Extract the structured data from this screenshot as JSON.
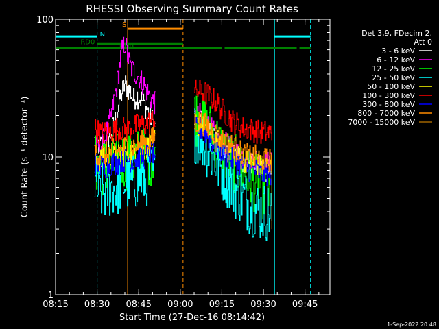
{
  "chart_data": {
    "type": "line",
    "title": "RHESSI Observing Summary Count Rates",
    "xlabel": "Start Time (27-Dec-16 08:14:42)",
    "ylabel": "Count Rate (s⁻¹ detector⁻¹)",
    "yscale": "log",
    "ylim": [
      1,
      100
    ],
    "xlim": [
      "08:15",
      "09:54"
    ],
    "x_ticks": [
      "08:15",
      "08:30",
      "08:45",
      "09:00",
      "09:15",
      "09:30",
      "09:45"
    ],
    "y_ticks": [
      "1",
      "10",
      "100"
    ],
    "legend": {
      "placement": "right",
      "header": [
        "Det 3,9, FDecim 2,",
        "Att 0"
      ]
    },
    "series": [
      {
        "name": "3 - 6 keV",
        "color": "#ffffff",
        "segments": [
          [
            [
              "08:29",
              13
            ],
            [
              "08:31",
              12
            ],
            [
              "08:33",
              13
            ],
            [
              "08:35",
              15
            ],
            [
              "08:37",
              20
            ],
            [
              "08:38",
              26
            ],
            [
              "08:39",
              30
            ],
            [
              "08:40",
              34
            ],
            [
              "08:41",
              31
            ],
            [
              "08:42",
              30
            ],
            [
              "08:43",
              26
            ],
            [
              "08:44",
              28
            ],
            [
              "08:46",
              26
            ],
            [
              "08:48",
              22
            ],
            [
              "08:50",
              18
            ],
            [
              "08:51",
              16
            ]
          ],
          [
            [
              "09:05",
              18
            ],
            [
              "09:07",
              19
            ],
            [
              "09:09",
              17
            ],
            [
              "09:11",
              15
            ],
            [
              "09:13",
              13
            ],
            [
              "09:15",
              12
            ],
            [
              "09:17",
              11
            ],
            [
              "09:19",
              10
            ],
            [
              "09:21",
              10
            ],
            [
              "09:23",
              9
            ],
            [
              "09:25",
              9
            ],
            [
              "09:27",
              9
            ],
            [
              "09:29",
              8.5
            ],
            [
              "09:31",
              8
            ],
            [
              "09:33",
              8
            ]
          ]
        ]
      },
      {
        "name": "6 - 12 keV",
        "color": "#ff00ff",
        "segments": [
          [
            [
              "08:29",
              13
            ],
            [
              "08:31",
              12
            ],
            [
              "08:33",
              14
            ],
            [
              "08:35",
              20
            ],
            [
              "08:37",
              33
            ],
            [
              "08:38",
              47
            ],
            [
              "08:39",
              60
            ],
            [
              "08:40",
              68
            ],
            [
              "08:41",
              52
            ],
            [
              "08:42",
              45
            ],
            [
              "08:43",
              42
            ],
            [
              "08:45",
              38
            ],
            [
              "08:47",
              33
            ],
            [
              "08:49",
              27
            ],
            [
              "08:51",
              24
            ]
          ],
          [
            [
              "09:05",
              19
            ],
            [
              "09:07",
              20
            ],
            [
              "09:09",
              18
            ],
            [
              "09:11",
              16
            ],
            [
              "09:13",
              14
            ],
            [
              "09:15",
              13
            ],
            [
              "09:17",
              12
            ],
            [
              "09:19",
              11
            ],
            [
              "09:21",
              10.5
            ],
            [
              "09:23",
              10
            ],
            [
              "09:25",
              9.5
            ],
            [
              "09:27",
              9.5
            ],
            [
              "09:29",
              9
            ],
            [
              "09:31",
              9
            ],
            [
              "09:33",
              9
            ]
          ]
        ]
      },
      {
        "name": "12 - 25 keV",
        "color": "#00ff00",
        "segments": [
          [
            [
              "08:29",
              9
            ],
            [
              "08:31",
              8.5
            ],
            [
              "08:33",
              8.5
            ],
            [
              "08:35",
              9
            ],
            [
              "08:37",
              9
            ],
            [
              "08:39",
              9.5
            ],
            [
              "08:41",
              9.5
            ],
            [
              "08:43",
              9.5
            ],
            [
              "08:45",
              10
            ],
            [
              "08:47",
              10
            ],
            [
              "08:49",
              10
            ],
            [
              "08:51",
              11
            ]
          ],
          [
            [
              "09:05",
              20
            ],
            [
              "09:07",
              19
            ],
            [
              "09:09",
              17
            ],
            [
              "09:11",
              15
            ],
            [
              "09:13",
              13
            ],
            [
              "09:15",
              11
            ],
            [
              "09:17",
              10
            ],
            [
              "09:19",
              9
            ],
            [
              "09:21",
              8.5
            ],
            [
              "09:23",
              8
            ],
            [
              "09:25",
              7
            ],
            [
              "09:27",
              6.5
            ],
            [
              "09:29",
              6
            ],
            [
              "09:31",
              5.5
            ],
            [
              "09:33",
              5.5
            ]
          ]
        ]
      },
      {
        "name": "25 - 50 keV",
        "color": "#00ffff",
        "segments": [
          [
            [
              "08:29",
              6
            ],
            [
              "08:31",
              5.5
            ],
            [
              "08:33",
              5.5
            ],
            [
              "08:35",
              6
            ],
            [
              "08:37",
              6
            ],
            [
              "08:39",
              6.5
            ],
            [
              "08:41",
              6.5
            ],
            [
              "08:43",
              6.5
            ],
            [
              "08:45",
              7
            ],
            [
              "08:47",
              7
            ],
            [
              "08:49",
              7.5
            ],
            [
              "08:51",
              8
            ]
          ],
          [
            [
              "09:05",
              15
            ],
            [
              "09:07",
              14
            ],
            [
              "09:09",
              12
            ],
            [
              "09:11",
              10.5
            ],
            [
              "09:13",
              9
            ],
            [
              "09:15",
              8
            ],
            [
              "09:17",
              7
            ],
            [
              "09:19",
              6
            ],
            [
              "09:21",
              5.5
            ],
            [
              "09:23",
              5
            ],
            [
              "09:25",
              4.5
            ],
            [
              "09:27",
              4.2
            ],
            [
              "09:29",
              4
            ],
            [
              "09:31",
              4
            ],
            [
              "09:33",
              3.8
            ]
          ]
        ]
      },
      {
        "name": "50 - 100 keV",
        "color": "#ffff00",
        "segments": [
          [
            [
              "08:29",
              10
            ],
            [
              "08:31",
              9.5
            ],
            [
              "08:33",
              9.5
            ],
            [
              "08:35",
              10
            ],
            [
              "08:37",
              10
            ],
            [
              "08:39",
              10.5
            ],
            [
              "08:41",
              10.5
            ],
            [
              "08:43",
              11
            ],
            [
              "08:45",
              11
            ],
            [
              "08:47",
              11.5
            ],
            [
              "08:49",
              12
            ],
            [
              "08:51",
              13
            ]
          ],
          [
            [
              "09:05",
              17
            ],
            [
              "09:07",
              17
            ],
            [
              "09:09",
              16
            ],
            [
              "09:11",
              14
            ],
            [
              "09:13",
              13
            ],
            [
              "09:15",
              12
            ],
            [
              "09:17",
              11
            ],
            [
              "09:19",
              10.5
            ],
            [
              "09:21",
              10
            ],
            [
              "09:23",
              9.5
            ],
            [
              "09:25",
              9
            ],
            [
              "09:27",
              9
            ],
            [
              "09:29",
              8.5
            ],
            [
              "09:31",
              8.5
            ],
            [
              "09:33",
              8.5
            ]
          ]
        ]
      },
      {
        "name": "100 - 300 keV",
        "color": "#ff0000",
        "segments": [
          [
            [
              "08:29",
              16
            ],
            [
              "08:31",
              15
            ],
            [
              "08:33",
              15
            ],
            [
              "08:35",
              15.5
            ],
            [
              "08:37",
              16
            ],
            [
              "08:39",
              16
            ],
            [
              "08:41",
              16
            ],
            [
              "08:43",
              16.5
            ],
            [
              "08:45",
              17
            ],
            [
              "08:47",
              17
            ],
            [
              "08:49",
              18
            ],
            [
              "08:51",
              19
            ]
          ],
          [
            [
              "09:05",
              30
            ],
            [
              "09:07",
              30
            ],
            [
              "09:09",
              29
            ],
            [
              "09:11",
              27
            ],
            [
              "09:13",
              25
            ],
            [
              "09:15",
              22
            ],
            [
              "09:17",
              20
            ],
            [
              "09:19",
              18
            ],
            [
              "09:21",
              17
            ],
            [
              "09:23",
              16
            ],
            [
              "09:25",
              16
            ],
            [
              "09:27",
              15.5
            ],
            [
              "09:29",
              15
            ],
            [
              "09:31",
              15
            ],
            [
              "09:33",
              15
            ]
          ]
        ]
      },
      {
        "name": "300 - 800 keV",
        "color": "#0000ff",
        "segments": [
          [
            [
              "08:29",
              9
            ],
            [
              "08:31",
              8.5
            ],
            [
              "08:33",
              8.5
            ],
            [
              "08:35",
              9
            ],
            [
              "08:37",
              9
            ],
            [
              "08:39",
              9.5
            ],
            [
              "08:41",
              9.5
            ],
            [
              "08:43",
              9.5
            ],
            [
              "08:45",
              10
            ],
            [
              "08:47",
              10
            ],
            [
              "08:49",
              10.5
            ],
            [
              "08:51",
              11
            ]
          ],
          [
            [
              "09:05",
              16
            ],
            [
              "09:07",
              16
            ],
            [
              "09:09",
              15
            ],
            [
              "09:11",
              13
            ],
            [
              "09:13",
              12
            ],
            [
              "09:15",
              11
            ],
            [
              "09:17",
              10
            ],
            [
              "09:19",
              9.5
            ],
            [
              "09:21",
              9
            ],
            [
              "09:23",
              8.5
            ],
            [
              "09:25",
              8
            ],
            [
              "09:27",
              8
            ],
            [
              "09:29",
              7.5
            ],
            [
              "09:31",
              7.5
            ],
            [
              "09:33",
              7.5
            ]
          ]
        ]
      },
      {
        "name": "800 - 7000 keV",
        "color": "#ff8c00",
        "segments": [
          [
            [
              "08:29",
              11
            ],
            [
              "08:31",
              10.5
            ],
            [
              "08:33",
              10.5
            ],
            [
              "08:35",
              11
            ],
            [
              "08:37",
              11
            ],
            [
              "08:39",
              11.5
            ],
            [
              "08:41",
              12
            ],
            [
              "08:43",
              12
            ],
            [
              "08:45",
              12.5
            ],
            [
              "08:47",
              13
            ],
            [
              "08:49",
              13
            ],
            [
              "08:51",
              14
            ]
          ],
          [
            [
              "09:05",
              18
            ],
            [
              "09:07",
              18
            ],
            [
              "09:09",
              17
            ],
            [
              "09:11",
              16
            ],
            [
              "09:13",
              14.5
            ],
            [
              "09:15",
              13.5
            ],
            [
              "09:17",
              12.5
            ],
            [
              "09:19",
              12
            ],
            [
              "09:21",
              11
            ],
            [
              "09:23",
              10.5
            ],
            [
              "09:25",
              10
            ],
            [
              "09:27",
              10
            ],
            [
              "09:29",
              9.5
            ],
            [
              "09:31",
              9.5
            ],
            [
              "09:33",
              9.5
            ]
          ]
        ]
      },
      {
        "name": "7000 - 15000 keV",
        "color": "#a06400",
        "segments": [
          [
            [
              "09:33",
              8
            ],
            [
              "09:33",
              3
            ]
          ]
        ]
      }
    ],
    "annotations": {
      "vlines": [
        {
          "x": "08:15",
          "color": "#00ffff",
          "style": "solid"
        },
        {
          "x": "08:30",
          "color": "#00ffff",
          "style": "dashed"
        },
        {
          "x": "08:41",
          "color": "#ff8c00",
          "style": "solid"
        },
        {
          "x": "09:01",
          "color": "#ff8c00",
          "style": "dashed"
        },
        {
          "x": "09:34",
          "color": "#00ffff",
          "style": "solid"
        },
        {
          "x": "09:47",
          "color": "#00ffff",
          "style": "dashed"
        }
      ],
      "bars": [
        {
          "color": "#00ffff",
          "y": 75,
          "segments": [
            [
              "08:15",
              "08:30"
            ],
            [
              "09:34",
              "09:47"
            ]
          ]
        },
        {
          "color": "#ff8c00",
          "y": 85,
          "segments": [
            [
              "08:41",
              "09:01"
            ]
          ]
        },
        {
          "color": "#008000",
          "y": 62,
          "segments": [
            [
              "08:15",
              "08:30"
            ],
            [
              "08:30",
              "09:01"
            ],
            [
              "09:01",
              "09:15"
            ],
            [
              "09:16",
              "09:42"
            ],
            [
              "09:43",
              "09:47"
            ]
          ]
        },
        {
          "color": "#008000",
          "y": 66,
          "segments": [
            [
              "08:30",
              "09:01"
            ]
          ]
        }
      ],
      "labels": [
        {
          "text": "S",
          "x": "08:39",
          "y": 88,
          "color": "#ff8c00"
        },
        {
          "text": "N",
          "x": "08:31",
          "y": 75,
          "color": "#00ffff"
        },
        {
          "text": "RD0",
          "x": "08:24",
          "y": 66,
          "color": "#008000"
        },
        {
          "text": "RD0",
          "x": "08:38",
          "y": 61,
          "color": "#008000"
        }
      ]
    },
    "footer": "1-Sep-2022 20:48"
  }
}
